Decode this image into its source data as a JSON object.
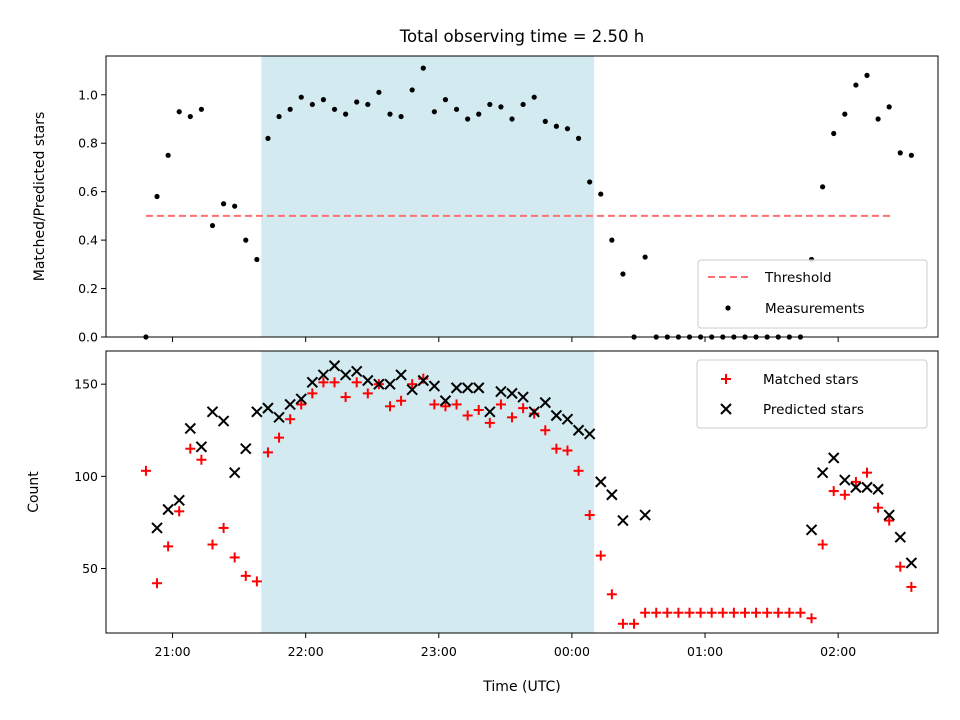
{
  "chart_data": [
    {
      "type": "scatter",
      "title": "Total observing time = 2.50 h",
      "ylabel": "Matched/Predicted stars",
      "xlabel": "",
      "ylim": [
        0,
        1.16
      ],
      "yticks": [
        "0.0",
        "0.2",
        "0.4",
        "0.6",
        "0.8",
        "1.0"
      ],
      "ytick_values": [
        0,
        0.2,
        0.4,
        0.6,
        0.8,
        1.0
      ],
      "x_unit": "minutes since 20:00 UTC",
      "threshold": {
        "label": "Threshold",
        "value": 0.5,
        "x_range": [
          48,
          385
        ],
        "color": "#ff7070"
      },
      "measurements": {
        "label": "Measurements",
        "color": "#000000",
        "points": [
          [
            48,
            0.0
          ],
          [
            53,
            0.58
          ],
          [
            58,
            0.75
          ],
          [
            63,
            0.93
          ],
          [
            68,
            0.91
          ],
          [
            73,
            0.94
          ],
          [
            78,
            0.46
          ],
          [
            83,
            0.55
          ],
          [
            88,
            0.54
          ],
          [
            93,
            0.4
          ],
          [
            98,
            0.32
          ],
          [
            103,
            0.82
          ],
          [
            108,
            0.91
          ],
          [
            113,
            0.94
          ],
          [
            118,
            0.99
          ],
          [
            123,
            0.96
          ],
          [
            128,
            0.98
          ],
          [
            133,
            0.94
          ],
          [
            138,
            0.92
          ],
          [
            143,
            0.97
          ],
          [
            148,
            0.96
          ],
          [
            153,
            1.01
          ],
          [
            158,
            0.92
          ],
          [
            163,
            0.91
          ],
          [
            168,
            1.02
          ],
          [
            173,
            1.11
          ],
          [
            178,
            0.93
          ],
          [
            183,
            0.98
          ],
          [
            188,
            0.94
          ],
          [
            193,
            0.9
          ],
          [
            198,
            0.92
          ],
          [
            203,
            0.96
          ],
          [
            208,
            0.95
          ],
          [
            213,
            0.9
          ],
          [
            218,
            0.96
          ],
          [
            223,
            0.99
          ],
          [
            228,
            0.89
          ],
          [
            233,
            0.87
          ],
          [
            238,
            0.86
          ],
          [
            243,
            0.82
          ],
          [
            248,
            0.64
          ],
          [
            253,
            0.59
          ],
          [
            258,
            0.4
          ],
          [
            263,
            0.26
          ],
          [
            268,
            0.0
          ],
          [
            273,
            0.33
          ],
          [
            278,
            0.0
          ],
          [
            283,
            0.0
          ],
          [
            288,
            0.0
          ],
          [
            293,
            0.0
          ],
          [
            298,
            0.0
          ],
          [
            303,
            0.0
          ],
          [
            308,
            0.0
          ],
          [
            313,
            0.0
          ],
          [
            318,
            0.0
          ],
          [
            323,
            0.0
          ],
          [
            328,
            0.0
          ],
          [
            333,
            0.0
          ],
          [
            338,
            0.0
          ],
          [
            343,
            0.0
          ],
          [
            348,
            0.32
          ],
          [
            353,
            0.62
          ],
          [
            358,
            0.84
          ],
          [
            363,
            0.92
          ],
          [
            368,
            1.04
          ],
          [
            373,
            1.08
          ],
          [
            378,
            0.9
          ],
          [
            383,
            0.95
          ],
          [
            388,
            0.76
          ],
          [
            393,
            0.75
          ]
        ]
      },
      "highlight": {
        "x_start": 100,
        "x_end": 250,
        "color": "#d3eaf0"
      },
      "legend_position": "lower right"
    },
    {
      "type": "scatter",
      "title": "",
      "ylabel": "Count",
      "xlabel": "Time (UTC)",
      "ylim": [
        15,
        168
      ],
      "yticks": [
        "50",
        "100",
        "150"
      ],
      "ytick_values": [
        50,
        100,
        150
      ],
      "xticks": [
        "21:00",
        "22:00",
        "23:00",
        "00:00",
        "01:00",
        "02:00"
      ],
      "xtick_values": [
        60,
        120,
        180,
        240,
        300,
        360
      ],
      "xlim": [
        30,
        405
      ],
      "highlight": {
        "x_start": 100,
        "x_end": 250,
        "color": "#d3eaf0"
      },
      "legend_position": "upper right",
      "series": [
        {
          "name": "Matched stars",
          "marker": "+",
          "color": "#ff0000",
          "points": [
            [
              48,
              103
            ],
            [
              53,
              42
            ],
            [
              58,
              62
            ],
            [
              63,
              81
            ],
            [
              68,
              115
            ],
            [
              73,
              109
            ],
            [
              78,
              63
            ],
            [
              83,
              72
            ],
            [
              88,
              56
            ],
            [
              93,
              46
            ],
            [
              98,
              43
            ],
            [
              103,
              113
            ],
            [
              108,
              121
            ],
            [
              113,
              131
            ],
            [
              118,
              139
            ],
            [
              123,
              145
            ],
            [
              128,
              151
            ],
            [
              133,
              151
            ],
            [
              138,
              143
            ],
            [
              143,
              151
            ],
            [
              148,
              145
            ],
            [
              153,
              150
            ],
            [
              158,
              138
            ],
            [
              163,
              141
            ],
            [
              168,
              150
            ],
            [
              173,
              153
            ],
            [
              178,
              139
            ],
            [
              183,
              138
            ],
            [
              188,
              139
            ],
            [
              193,
              133
            ],
            [
              198,
              136
            ],
            [
              203,
              129
            ],
            [
              208,
              139
            ],
            [
              213,
              132
            ],
            [
              218,
              137
            ],
            [
              223,
              134
            ],
            [
              228,
              125
            ],
            [
              233,
              115
            ],
            [
              238,
              114
            ],
            [
              243,
              103
            ],
            [
              248,
              79
            ],
            [
              253,
              57
            ],
            [
              258,
              36
            ],
            [
              263,
              20
            ],
            [
              268,
              20
            ],
            [
              273,
              26
            ],
            [
              278,
              26
            ],
            [
              283,
              26
            ],
            [
              288,
              26
            ],
            [
              293,
              26
            ],
            [
              298,
              26
            ],
            [
              303,
              26
            ],
            [
              308,
              26
            ],
            [
              313,
              26
            ],
            [
              318,
              26
            ],
            [
              323,
              26
            ],
            [
              328,
              26
            ],
            [
              333,
              26
            ],
            [
              338,
              26
            ],
            [
              343,
              26
            ],
            [
              348,
              23
            ],
            [
              353,
              63
            ],
            [
              358,
              92
            ],
            [
              363,
              90
            ],
            [
              368,
              97
            ],
            [
              373,
              102
            ],
            [
              378,
              83
            ],
            [
              383,
              76
            ],
            [
              388,
              51
            ],
            [
              393,
              40
            ]
          ]
        },
        {
          "name": "Predicted stars",
          "marker": "x",
          "color": "#000000",
          "points": [
            [
              53,
              72
            ],
            [
              58,
              82
            ],
            [
              63,
              87
            ],
            [
              68,
              126
            ],
            [
              73,
              116
            ],
            [
              78,
              135
            ],
            [
              83,
              130
            ],
            [
              88,
              102
            ],
            [
              93,
              115
            ],
            [
              98,
              135
            ],
            [
              103,
              137
            ],
            [
              108,
              132
            ],
            [
              113,
              139
            ],
            [
              118,
              142
            ],
            [
              123,
              151
            ],
            [
              128,
              155
            ],
            [
              133,
              160
            ],
            [
              138,
              155
            ],
            [
              143,
              157
            ],
            [
              148,
              152
            ],
            [
              153,
              150
            ],
            [
              158,
              150
            ],
            [
              163,
              155
            ],
            [
              168,
              147
            ],
            [
              173,
              152
            ],
            [
              178,
              149
            ],
            [
              183,
              141
            ],
            [
              188,
              148
            ],
            [
              193,
              148
            ],
            [
              198,
              148
            ],
            [
              203,
              135
            ],
            [
              208,
              146
            ],
            [
              213,
              145
            ],
            [
              218,
              143
            ],
            [
              223,
              135
            ],
            [
              228,
              140
            ],
            [
              233,
              133
            ],
            [
              238,
              131
            ],
            [
              243,
              125
            ],
            [
              248,
              123
            ],
            [
              253,
              97
            ],
            [
              258,
              90
            ],
            [
              263,
              76
            ],
            [
              273,
              79
            ],
            [
              348,
              71
            ],
            [
              353,
              102
            ],
            [
              358,
              110
            ],
            [
              363,
              98
            ],
            [
              368,
              94
            ],
            [
              373,
              94
            ],
            [
              378,
              93
            ],
            [
              383,
              79
            ],
            [
              388,
              67
            ],
            [
              393,
              53
            ]
          ]
        }
      ]
    }
  ]
}
